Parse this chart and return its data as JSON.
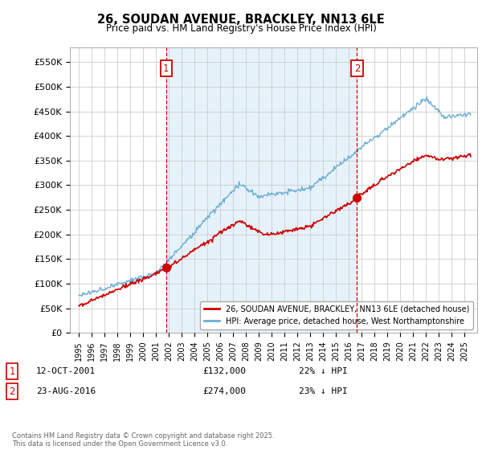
{
  "title": "26, SOUDAN AVENUE, BRACKLEY, NN13 6LE",
  "subtitle": "Price paid vs. HM Land Registry's House Price Index (HPI)",
  "ylabel_ticks": [
    "£0",
    "£50K",
    "£100K",
    "£150K",
    "£200K",
    "£250K",
    "£300K",
    "£350K",
    "£400K",
    "£450K",
    "£500K",
    "£550K"
  ],
  "ytick_values": [
    0,
    50000,
    100000,
    150000,
    200000,
    250000,
    300000,
    350000,
    400000,
    450000,
    500000,
    550000
  ],
  "ylim": [
    0,
    580000
  ],
  "hpi_color": "#6baed6",
  "hpi_fill_color": "#d6eaf8",
  "price_color": "#cc0000",
  "vline_color": "#cc0000",
  "marker1_date": 2001.79,
  "marker2_date": 2016.65,
  "marker1_price": 132000,
  "marker2_price": 274000,
  "legend_label1": "26, SOUDAN AVENUE, BRACKLEY, NN13 6LE (detached house)",
  "legend_label2": "HPI: Average price, detached house, West Northamptonshire",
  "note1_box": "1",
  "note2_box": "2",
  "note1_date": "12-OCT-2001",
  "note1_price": "£132,000",
  "note1_hpi": "22% ↓ HPI",
  "note2_date": "23-AUG-2016",
  "note2_price": "£274,000",
  "note2_hpi": "23% ↓ HPI",
  "footer": "Contains HM Land Registry data © Crown copyright and database right 2025.\nThis data is licensed under the Open Government Licence v3.0.",
  "background_color": "#ffffff",
  "grid_color": "#cccccc"
}
